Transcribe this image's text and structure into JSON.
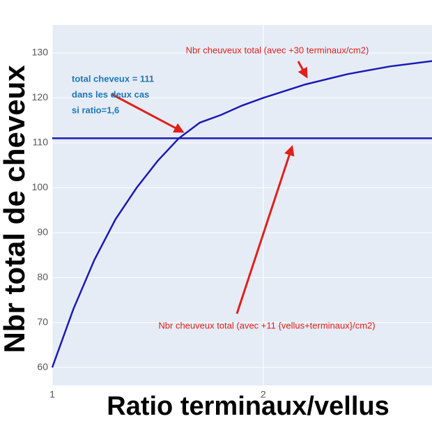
{
  "chart_data": {
    "type": "line",
    "x_label": "Ratio terminaux/vellus",
    "y_label": "Nbr total de cheveux",
    "xlim": [
      1,
      2.8
    ],
    "xticks": [
      1,
      2
    ],
    "ylim": [
      56,
      136.2
    ],
    "yticks": [
      60,
      70,
      80,
      90,
      100,
      110,
      120,
      130
    ],
    "grid": true,
    "background": "#e5ecf6",
    "series": [
      {
        "color": "#1a1ab4",
        "x": [
          1,
          1.1,
          1.2,
          1.3,
          1.4,
          1.5,
          1.6,
          1.7,
          1.8,
          1.9,
          2,
          2.2,
          2.4,
          2.6,
          2.8
        ],
        "values": [
          60,
          73,
          84,
          93,
          100,
          106,
          111,
          114.5,
          116.2,
          118.3,
          120,
          123,
          125.3,
          127,
          128.2
        ]
      },
      {
        "color": "#1a1ab4",
        "x": [
          1,
          2.8
        ],
        "values": [
          111,
          111
        ]
      }
    ],
    "annotations": [
      {
        "lines": [
          "Nbr cheuveux total (avec +30 terminaux/cm2)"
        ],
        "color": "#e0201b"
      },
      {
        "lines": [
          "total cheveux = 111",
          "dans les deux cas",
          "si ratio=1,6"
        ],
        "color": "#1f77b4"
      },
      {
        "lines": [
          "Nbr cheuveux total (avec +11 {vellus+terminaux}/cm2)"
        ],
        "color": "#e0201b"
      }
    ]
  }
}
